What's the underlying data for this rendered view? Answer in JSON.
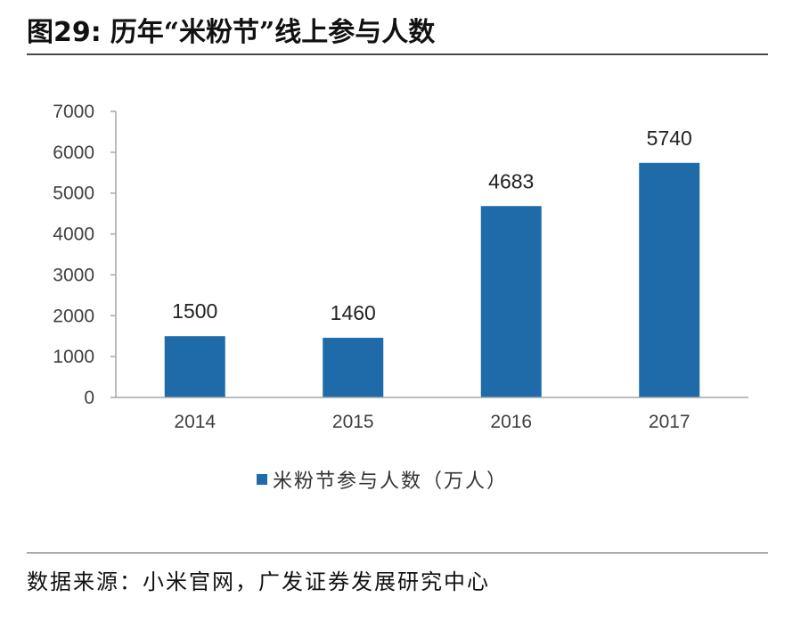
{
  "header": {
    "figure_label": "图29:",
    "title": "历年“米粉节”线上参与人数"
  },
  "colors": {
    "bar": "#1f6aa8",
    "axis": "#a6a6a6",
    "rule": "#4a4a4a"
  },
  "chart_data": {
    "type": "bar",
    "title": "历年“米粉节”线上参与人数",
    "xlabel": "",
    "ylabel": "",
    "categories": [
      "2014",
      "2015",
      "2016",
      "2017"
    ],
    "series": [
      {
        "name": "米粉节参与人数（万人）",
        "values": [
          1500,
          1460,
          4683,
          5740
        ]
      }
    ],
    "data_labels": [
      "1500",
      "1460",
      "4683",
      "5740"
    ],
    "ylim": [
      0,
      7000
    ],
    "y_ticks": [
      0,
      1000,
      2000,
      3000,
      4000,
      5000,
      6000,
      7000
    ],
    "y_tick_labels": [
      "0",
      "1000",
      "2000",
      "3000",
      "4000",
      "5000",
      "6000",
      "7000"
    ],
    "grid": false,
    "legend_position": "bottom"
  },
  "legend": {
    "label": "米粉节参与人数（万人）"
  },
  "footer": {
    "source": "数据来源：小米官网，广发证券发展研究中心"
  }
}
